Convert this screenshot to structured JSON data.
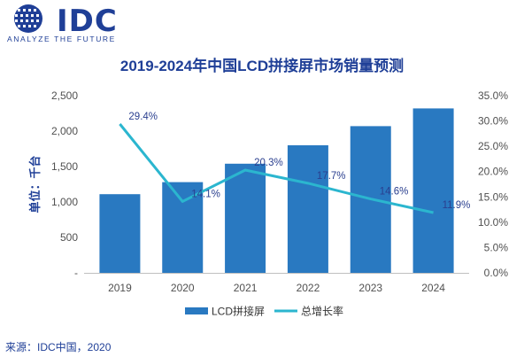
{
  "brand": {
    "logo_text": "IDC",
    "tagline": "ANALYZE THE FUTURE"
  },
  "source_note": "来源：IDC中国，2020",
  "colors": {
    "bar": "#2979c1",
    "line": "#2bb6cf",
    "title": "#1f3f97",
    "axis_text": "#505050"
  },
  "chart_data": {
    "type": "bar",
    "title": "2019-2024年中国LCD拼接屏市场销量预测",
    "ylabel": "单位：千台",
    "categories": [
      "2019",
      "2020",
      "2021",
      "2022",
      "2023",
      "2024"
    ],
    "series": [
      {
        "name": "LCD拼接屏",
        "type": "bar",
        "axis": "left",
        "values": [
          1110,
          1280,
          1540,
          1800,
          2070,
          2320
        ]
      },
      {
        "name": "总增长率",
        "type": "line",
        "axis": "right",
        "values": [
          29.4,
          14.1,
          20.3,
          17.7,
          14.6,
          11.9
        ],
        "labels": [
          "29.4%",
          "14.1%",
          "20.3%",
          "17.7%",
          "14.6%",
          "11.9%"
        ]
      }
    ],
    "ylim": [
      0,
      2500
    ],
    "y_ticks": [
      "-",
      "500",
      "1,000",
      "1,500",
      "2,000",
      "2,500"
    ],
    "y2lim": [
      0,
      35
    ],
    "y2_ticks": [
      "0.0%",
      "5.0%",
      "10.0%",
      "15.0%",
      "20.0%",
      "25.0%",
      "30.0%",
      "35.0%"
    ],
    "legend_position": "bottom",
    "grid": false
  }
}
